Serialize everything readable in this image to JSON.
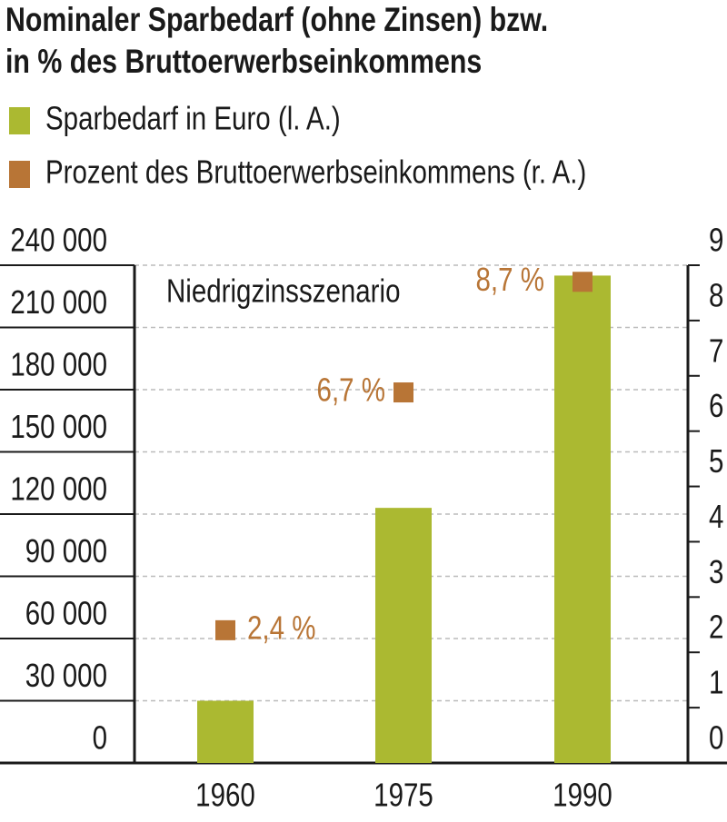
{
  "chart_data": {
    "type": "bar",
    "title": [
      "Nominaler Sparbedarf (ohne Zinsen) bzw.",
      "in % des Bruttoerwerbseinkommens"
    ],
    "annotation": "Niedrigzinsszenario",
    "categories": [
      "1960",
      "1975",
      "1990"
    ],
    "series": [
      {
        "name": "Sparbedarf in Euro (l. A.)",
        "color": "#abb931",
        "type": "bar",
        "values": [
          30000,
          123000,
          235000
        ]
      },
      {
        "name": "Prozent des Bruttoerwerbseinkommens (r. A.)",
        "color": "#b87536",
        "type": "scatter",
        "axis": "y2",
        "values": [
          2.4,
          6.7,
          8.7
        ],
        "value_labels": [
          "2,4 %",
          "6,7 %",
          "8,7 %"
        ]
      }
    ],
    "ylim": [
      0,
      240000
    ],
    "yticks": [
      0,
      {
        "value": 30000,
        "label": "30 000"
      },
      {
        "value": 60000,
        "label": "60 000"
      },
      {
        "value": 90000,
        "label": "90 000"
      },
      {
        "value": 120000,
        "label": "120 000"
      },
      {
        "value": 150000,
        "label": "150 000"
      },
      {
        "value": 180000,
        "label": "180 000"
      },
      {
        "value": 210000,
        "label": "210 000"
      },
      {
        "value": 240000,
        "label": "240 000"
      }
    ],
    "y2lim": [
      0,
      9
    ],
    "y2ticks": [
      0,
      1,
      2,
      3,
      4,
      5,
      6,
      7,
      8,
      9
    ],
    "grid": true
  }
}
